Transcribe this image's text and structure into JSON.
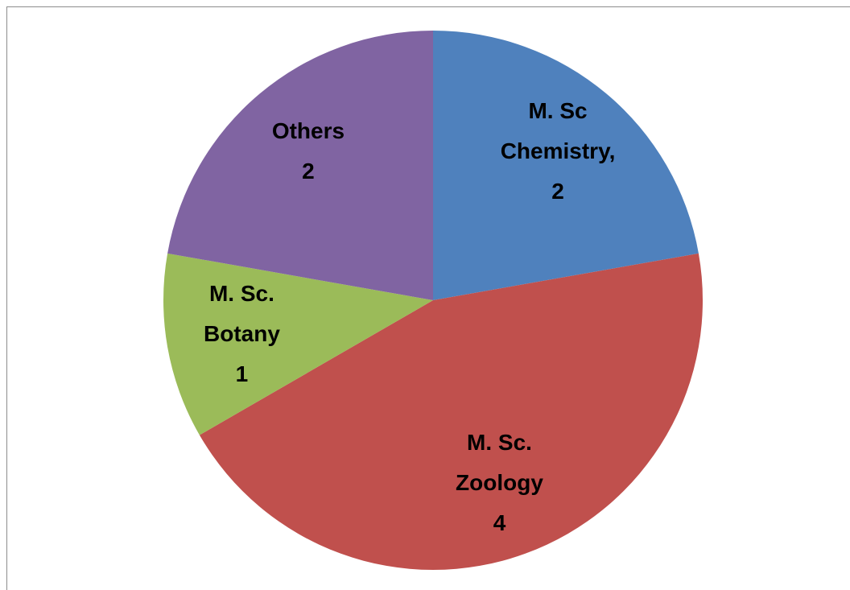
{
  "chart_data": {
    "type": "pie",
    "categories": [
      "M. Sc Chemistry,",
      "M. Sc. Zoology",
      "M. Sc. Botany",
      "Others"
    ],
    "values": [
      2,
      4,
      1,
      2
    ],
    "colors": [
      "#4f81bd",
      "#c0504d",
      "#9bbb59",
      "#8064a2"
    ]
  }
}
